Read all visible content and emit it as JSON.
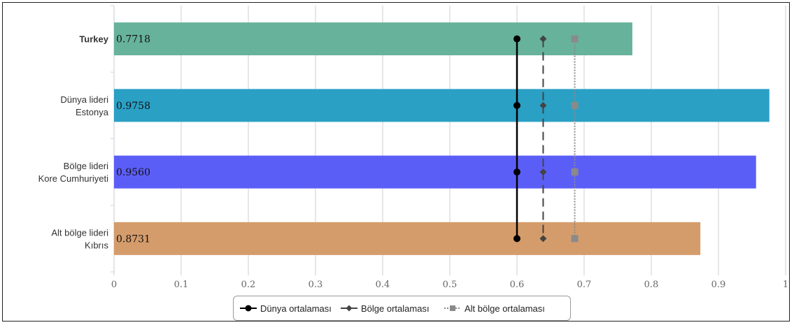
{
  "chart_data": {
    "type": "bar",
    "orientation": "horizontal",
    "categories": [
      {
        "lines": [
          "Turkey"
        ],
        "bold": true
      },
      {
        "lines": [
          "Dünya lideri",
          "Estonya"
        ],
        "bold": false
      },
      {
        "lines": [
          "Bölge lideri",
          "Kore Cumhuriyeti"
        ],
        "bold": false
      },
      {
        "lines": [
          "Alt bölge lideri",
          "Kıbrıs"
        ],
        "bold": false
      }
    ],
    "values": [
      0.7718,
      0.9758,
      0.956,
      0.8731
    ],
    "value_labels": [
      "0.7718",
      "0.9758",
      "0.9560",
      "0.8731"
    ],
    "bar_colors": [
      "#67b29b",
      "#2aa0c5",
      "#5b5ef6",
      "#d59c6b"
    ],
    "xlim": [
      0,
      1
    ],
    "xticks": [
      "0",
      "0.1",
      "0.2",
      "0.3",
      "0.4",
      "0.5",
      "0.6",
      "0.7",
      "0.8",
      "0.9",
      "1"
    ],
    "grid": true,
    "series": [
      {
        "name": "Dünya ortalaması",
        "value": 0.6,
        "color": "#000000",
        "line": "solid",
        "marker": "circle"
      },
      {
        "name": "Bölge ortalaması",
        "value": 0.639,
        "color": "#444444",
        "line": "dashed",
        "marker": "diamond"
      },
      {
        "name": "Alt bölge ortalaması",
        "value": 0.686,
        "color": "#8a8a8a",
        "line": "dotted",
        "marker": "square"
      }
    ],
    "legend_position": "bottom"
  }
}
